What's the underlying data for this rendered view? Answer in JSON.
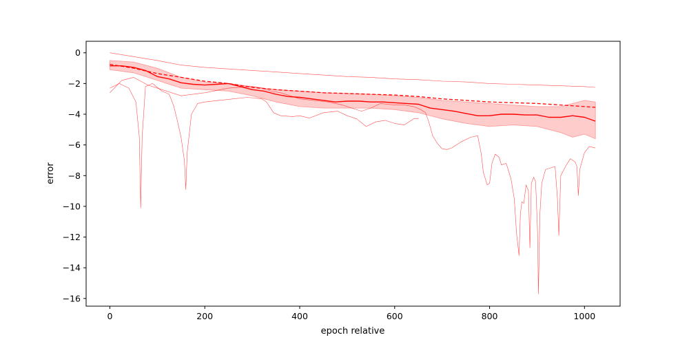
{
  "chart_data": {
    "type": "line",
    "title": "",
    "xlabel": "epoch relative",
    "ylabel": "error",
    "xlim": [
      -50,
      1075
    ],
    "ylim": [
      -16.5,
      0.75
    ],
    "grid": false,
    "legend": "none",
    "x_ticks": [
      0,
      200,
      400,
      600,
      800,
      1000
    ],
    "y_ticks": [
      0,
      -2,
      -4,
      -6,
      -8,
      -10,
      -12,
      -14,
      -16
    ],
    "color": "#ff0000",
    "band": {
      "x": [
        0,
        50,
        100,
        150,
        200,
        250,
        300,
        350,
        400,
        450,
        500,
        550,
        600,
        650,
        700,
        750,
        800,
        850,
        900,
        950,
        975,
        1000,
        1023
      ],
      "upper": [
        -0.5,
        -0.6,
        -1.0,
        -1.6,
        -1.9,
        -2.0,
        -2.2,
        -2.4,
        -2.5,
        -2.6,
        -2.65,
        -2.7,
        -2.8,
        -2.9,
        -3.1,
        -3.2,
        -3.3,
        -3.4,
        -3.5,
        -3.5,
        -3.3,
        -3.1,
        -3.2
      ],
      "lower": [
        -1.1,
        -1.3,
        -1.8,
        -2.3,
        -2.4,
        -2.5,
        -2.8,
        -3.2,
        -3.5,
        -3.6,
        -3.6,
        -3.6,
        -3.7,
        -3.9,
        -4.3,
        -4.6,
        -4.8,
        -4.7,
        -4.8,
        -5.2,
        -5.5,
        -5.3,
        -5.6
      ]
    },
    "series": [
      {
        "style": "solid",
        "x": [
          0,
          25,
          50,
          75,
          100,
          125,
          150,
          175,
          200,
          225,
          250,
          275,
          300,
          325,
          350,
          375,
          400,
          425,
          450,
          475,
          500,
          525,
          550,
          575,
          600,
          625,
          650,
          675,
          700,
          725,
          750,
          775,
          800,
          825,
          850,
          875,
          900,
          925,
          950,
          975,
          1000,
          1023
        ],
        "y": [
          -0.85,
          -0.85,
          -0.95,
          -1.15,
          -1.55,
          -1.7,
          -1.95,
          -2.05,
          -2.1,
          -2.05,
          -2.0,
          -2.2,
          -2.4,
          -2.5,
          -2.7,
          -2.85,
          -2.9,
          -3.0,
          -3.1,
          -3.2,
          -3.15,
          -3.15,
          -3.2,
          -3.2,
          -3.25,
          -3.3,
          -3.35,
          -3.6,
          -3.7,
          -3.8,
          -3.95,
          -4.1,
          -4.1,
          -4.0,
          -4.0,
          -4.05,
          -4.05,
          -4.2,
          -4.2,
          -4.1,
          -4.2,
          -4.45
        ]
      },
      {
        "style": "dashed",
        "x": [
          0,
          50,
          100,
          150,
          200,
          250,
          300,
          350,
          400,
          450,
          500,
          550,
          600,
          650,
          700,
          750,
          800,
          850,
          900,
          950,
          1000,
          1023
        ],
        "y": [
          -0.75,
          -1.0,
          -1.35,
          -1.6,
          -1.85,
          -2.0,
          -2.25,
          -2.4,
          -2.5,
          -2.6,
          -2.65,
          -2.7,
          -2.75,
          -2.85,
          -3.0,
          -3.1,
          -3.2,
          -3.25,
          -3.3,
          -3.4,
          -3.5,
          -3.55
        ]
      },
      {
        "style": "thin",
        "x": [
          0,
          50,
          100,
          150,
          200,
          250,
          300,
          350,
          400,
          450,
          500,
          550,
          600,
          650,
          700,
          750,
          800,
          850,
          900,
          950,
          1000,
          1023
        ],
        "y": [
          0.0,
          -0.25,
          -0.5,
          -0.8,
          -0.95,
          -1.05,
          -1.15,
          -1.25,
          -1.35,
          -1.45,
          -1.55,
          -1.6,
          -1.7,
          -1.75,
          -1.85,
          -1.9,
          -2.0,
          -2.05,
          -2.1,
          -2.15,
          -2.2,
          -2.25
        ]
      },
      {
        "style": "thin",
        "x": [
          0,
          20,
          40,
          55,
          62,
          65,
          68,
          75,
          90,
          110,
          125,
          135,
          142,
          150,
          157,
          160,
          163,
          172,
          185,
          200,
          230,
          260,
          290,
          320,
          330,
          345,
          360,
          385,
          400,
          420,
          450,
          480,
          500,
          520,
          540,
          560,
          580,
          600,
          620,
          640,
          650
        ],
        "y": [
          -2.3,
          -2.0,
          -2.3,
          -3.2,
          -5.5,
          -10.1,
          -5.5,
          -2.2,
          -2.0,
          -2.5,
          -2.7,
          -3.5,
          -4.4,
          -5.5,
          -7.0,
          -8.9,
          -6.5,
          -4.0,
          -3.3,
          -3.2,
          -3.1,
          -3.0,
          -2.9,
          -3.0,
          -3.2,
          -3.9,
          -4.1,
          -4.15,
          -4.1,
          -4.25,
          -3.9,
          -3.8,
          -4.1,
          -4.3,
          -4.8,
          -4.5,
          -4.4,
          -4.6,
          -4.7,
          -4.3,
          -4.3
        ]
      },
      {
        "style": "thin",
        "x": [
          0,
          25,
          50,
          80,
          110,
          150,
          200,
          250,
          300,
          320,
          340,
          360,
          380,
          400,
          430,
          460,
          490,
          510,
          530,
          550,
          570,
          600,
          620,
          640,
          655,
          665,
          672,
          680,
          690,
          700,
          710,
          720,
          740,
          760,
          775,
          782,
          787,
          795,
          800,
          805,
          812,
          820,
          825,
          835,
          845,
          852,
          857,
          862,
          865,
          868,
          872,
          877,
          882,
          885,
          888,
          893,
          897,
          901,
          903,
          906,
          910,
          918,
          928,
          938,
          943,
          946,
          950,
          960,
          970,
          980,
          984,
          987,
          990,
          1000,
          1010,
          1023
        ],
        "y": [
          -2.6,
          -1.8,
          -1.6,
          -2.1,
          -2.4,
          -2.8,
          -2.6,
          -2.3,
          -2.2,
          -2.3,
          -2.5,
          -2.6,
          -2.8,
          -3.0,
          -3.1,
          -3.2,
          -3.4,
          -3.6,
          -3.8,
          -3.6,
          -3.3,
          -3.4,
          -3.4,
          -3.5,
          -3.7,
          -3.9,
          -4.5,
          -5.4,
          -5.9,
          -6.25,
          -6.3,
          -6.2,
          -5.8,
          -5.5,
          -5.4,
          -6.5,
          -7.8,
          -8.6,
          -8.5,
          -7.2,
          -6.6,
          -6.8,
          -7.3,
          -7.2,
          -8.2,
          -9.5,
          -11.8,
          -13.2,
          -10.5,
          -9.7,
          -9.8,
          -8.6,
          -9.0,
          -12.7,
          -8.5,
          -8.1,
          -8.4,
          -11.5,
          -15.7,
          -10.5,
          -8.5,
          -7.6,
          -7.5,
          -7.4,
          -9.5,
          -11.9,
          -8.0,
          -7.4,
          -6.9,
          -7.1,
          -7.4,
          -9.3,
          -7.6,
          -6.5,
          -6.1,
          -6.2
        ]
      }
    ]
  }
}
